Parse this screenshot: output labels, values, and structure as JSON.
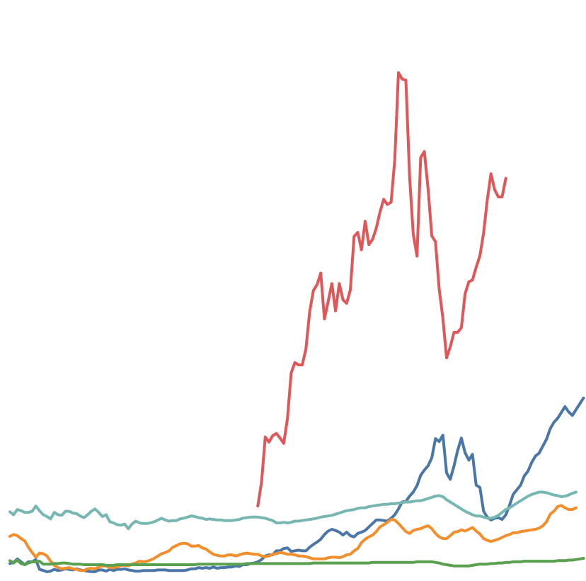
{
  "chart_data": {
    "type": "line",
    "title": "",
    "xlabel": "",
    "ylabel": "",
    "grid": false,
    "legend": "none",
    "x_start": 0,
    "x_step": 1,
    "xlim": [
      0,
      153
    ],
    "ylim": [
      0,
      100
    ],
    "series": [
      {
        "name": "red",
        "color": "#e05759",
        "start_index": 67,
        "values": [
          12.9,
          17.1,
          24.8,
          23.9,
          25.0,
          25.4,
          24.6,
          23.7,
          28.0,
          35.8,
          37.6,
          37.2,
          37.2,
          40.0,
          46.3,
          50.0,
          51.0,
          53.0,
          45.1,
          48.1,
          51.2,
          46.5,
          51.2,
          48.4,
          47.8,
          50.1,
          59.3,
          60.0,
          57.0,
          61.9,
          57.9,
          58.8,
          60.7,
          63.5,
          65.7,
          64.8,
          65.2,
          72.5,
          87.5,
          86.4,
          86.2,
          69.7,
          59.7,
          55.9,
          72.9,
          73.9,
          67.6,
          59.4,
          58.4,
          50.3,
          45.2,
          38.4,
          40.3,
          42.8,
          42.8,
          43.6,
          49.4,
          51.5,
          51.8,
          54.0,
          56.0,
          59.9,
          65.6,
          70.1,
          67.3,
          66.1,
          66.1,
          69.3
        ]
      },
      {
        "name": "blue",
        "color": "#4a76a8",
        "start_index": 0,
        "values": [
          3.0,
          3.2,
          3.8,
          3.3,
          2.8,
          3.3,
          3.3,
          3.7,
          2.0,
          1.8,
          1.6,
          1.7,
          2.0,
          1.8,
          1.9,
          2.1,
          2.0,
          1.9,
          2.1,
          1.9,
          1.8,
          1.7,
          1.6,
          1.6,
          1.9,
          1.9,
          1.7,
          2.0,
          1.8,
          2.0,
          2.0,
          2.1,
          1.9,
          1.8,
          1.7,
          1.7,
          1.8,
          1.8,
          1.8,
          1.8,
          1.9,
          1.9,
          1.9,
          1.8,
          1.8,
          1.8,
          1.8,
          1.8,
          1.9,
          2.1,
          2.1,
          2.3,
          2.2,
          2.3,
          2.2,
          2.4,
          2.2,
          2.3,
          2.3,
          2.4,
          2.4,
          2.6,
          2.5,
          2.8,
          2.8,
          3.0,
          3.1,
          3.3,
          3.7,
          4.3,
          4.5,
          4.5,
          5.2,
          5.2,
          5.6,
          5.7,
          5.1,
          5.2,
          5.3,
          5.2,
          5.2,
          5.8,
          6.3,
          6.7,
          7.2,
          8.0,
          8.6,
          8.9,
          8.7,
          8.4,
          7.9,
          8.4,
          7.8,
          7.6,
          8.2,
          8.4,
          8.7,
          9.3,
          9.9,
          10.5,
          10.5,
          10.4,
          10.3,
          10.8,
          11.4,
          12.4,
          13.6,
          13.7,
          14.6,
          15.3,
          16.4,
          18.2,
          19.1,
          19.8,
          21.2,
          24.5,
          24.0,
          25.1,
          18.6,
          17.5,
          19.8,
          22.5,
          24.6,
          22.1,
          20.8,
          21.8,
          16.5,
          16.1,
          12.0,
          11.0,
          10.5,
          10.8,
          10.9,
          10.6,
          11.4,
          13.0,
          14.9,
          15.7,
          16.5,
          18.1,
          18.9,
          20.4,
          21.5,
          22.0,
          23.2,
          24.4,
          26.2,
          27.3,
          28.0,
          29.0,
          30.0,
          29.1,
          28.5,
          29.5,
          30.5,
          31.5
        ]
      },
      {
        "name": "orange",
        "color": "#f28e2b",
        "start_index": 0,
        "values": [
          7.7,
          8.0,
          7.8,
          7.3,
          6.9,
          5.8,
          4.9,
          4.1,
          4.8,
          4.7,
          4.3,
          3.4,
          2.7,
          2.3,
          2.1,
          2.2,
          2.3,
          2.1,
          2.0,
          1.8,
          1.8,
          2.1,
          2.2,
          2.1,
          2.4,
          2.6,
          2.6,
          2.3,
          2.3,
          2.4,
          2.7,
          2.7,
          2.6,
          2.9,
          3.1,
          3.4,
          3.3,
          3.4,
          3.6,
          3.9,
          4.3,
          4.7,
          4.9,
          5.2,
          5.8,
          6.1,
          6.4,
          6.5,
          6.4,
          6.0,
          6.0,
          6.1,
          5.7,
          5.5,
          5.0,
          4.6,
          4.4,
          4.3,
          4.3,
          4.5,
          4.5,
          4.3,
          4.5,
          4.7,
          4.8,
          4.7,
          4.6,
          4.6,
          4.3,
          4.2,
          4.3,
          4.6,
          4.7,
          4.9,
          4.8,
          4.6,
          4.6,
          4.5,
          4.3,
          4.3,
          4.2,
          4.0,
          3.8,
          3.8,
          3.8,
          3.8,
          4.0,
          4.1,
          4.1,
          4.0,
          4.2,
          4.5,
          4.6,
          5.2,
          5.6,
          6.6,
          7.2,
          7.6,
          7.9,
          8.5,
          9.3,
          9.7,
          10.1,
          10.6,
          10.5,
          9.9,
          9.2,
          8.5,
          8.2,
          8.7,
          8.9,
          9.0,
          9.3,
          9.5,
          9.0,
          8.2,
          7.6,
          7.3,
          7.3,
          7.8,
          8.4,
          8.5,
          8.8,
          8.6,
          8.9,
          9.2,
          8.6,
          8.1,
          7.3,
          7.0,
          6.8,
          7.0,
          7.2,
          7.5,
          7.8,
          8.0,
          8.3,
          8.3,
          8.5,
          8.6,
          8.7,
          8.8,
          8.9,
          9.1,
          9.5,
          10.2,
          11.5,
          12.0,
          12.8,
          13.0,
          12.6,
          12.3,
          12.3,
          12.6
        ]
      },
      {
        "name": "teal",
        "color": "#76b7b2",
        "start_index": 0,
        "values": [
          11.9,
          11.4,
          12.3,
          12.1,
          11.8,
          11.8,
          12.0,
          12.9,
          12.1,
          11.4,
          11.1,
          10.7,
          11.8,
          11.4,
          11.3,
          12.0,
          12.0,
          11.7,
          11.6,
          11.2,
          10.9,
          11.4,
          12.0,
          12.4,
          11.8,
          11.1,
          11.4,
          10.2,
          10.0,
          9.7,
          9.6,
          9.8,
          9.0,
          9.8,
          10.3,
          10.0,
          9.9,
          9.9,
          10.0,
          10.2,
          10.5,
          10.8,
          10.5,
          10.3,
          10.4,
          10.4,
          10.7,
          10.8,
          11.0,
          11.2,
          11.1,
          10.9,
          10.8,
          10.6,
          10.7,
          10.6,
          10.5,
          10.5,
          10.4,
          10.4,
          10.4,
          10.5,
          10.6,
          10.8,
          10.9,
          11.0,
          11.0,
          11.0,
          10.9,
          10.8,
          10.6,
          10.4,
          10.0,
          10.0,
          10.1,
          10.0,
          10.1,
          10.3,
          10.3,
          10.4,
          10.5,
          10.6,
          10.7,
          10.8,
          11.0,
          11.1,
          11.2,
          11.3,
          11.5,
          11.7,
          11.9,
          12.1,
          12.2,
          12.3,
          12.5,
          12.6,
          12.6,
          12.8,
          12.9,
          13.0,
          13.1,
          13.2,
          13.2,
          13.3,
          13.3,
          13.4,
          13.5,
          13.6,
          13.6,
          13.7,
          13.8,
          13.8,
          14.0,
          14.2,
          14.4,
          14.6,
          14.7,
          14.5,
          14.0,
          13.6,
          13.2,
          12.8,
          12.4,
          12.0,
          11.7,
          11.4,
          11.2,
          11.2,
          11.0,
          10.8,
          10.8,
          11.0,
          11.3,
          11.8,
          12.3,
          12.6,
          13.0,
          13.4,
          13.8,
          14.2,
          14.6,
          14.9,
          15.1,
          15.3,
          15.3,
          15.2,
          15.0,
          14.8,
          14.7,
          14.5,
          14.6,
          14.8,
          15.1,
          15.3
        ]
      },
      {
        "name": "green",
        "color": "#59a14f",
        "start_index": 0,
        "values": [
          3.5,
          3.1,
          3.6,
          3.0,
          2.8,
          3.1,
          3.3,
          3.3,
          3.4,
          2.9,
          2.9,
          2.9,
          3.0,
          3.0,
          3.1,
          3.1,
          3.0,
          2.9,
          2.9,
          2.9,
          2.8,
          2.8,
          2.8,
          2.8,
          2.8,
          2.8,
          2.7,
          2.7,
          2.7,
          2.8,
          2.8,
          2.8,
          2.8,
          2.8,
          2.8,
          2.8,
          2.8,
          2.8,
          2.8,
          2.8,
          2.8,
          2.8,
          2.8,
          2.8,
          2.8,
          2.8,
          2.8,
          2.8,
          2.8,
          2.8,
          2.8,
          2.9,
          2.9,
          2.9,
          2.9,
          2.9,
          2.9,
          2.9,
          2.9,
          2.9,
          2.9,
          2.9,
          2.9,
          2.9,
          3.0,
          3.0,
          3.0,
          3.0,
          3.0,
          3.0,
          3.0,
          3.0,
          3.0,
          3.0,
          3.0,
          3.0,
          3.0,
          3.0,
          3.0,
          3.0,
          3.0,
          3.0,
          3.1,
          3.1,
          3.1,
          3.1,
          3.1,
          3.1,
          3.1,
          3.1,
          3.1,
          3.1,
          3.1,
          3.1,
          3.1,
          3.1,
          3.1,
          3.1,
          3.2,
          3.2,
          3.2,
          3.2,
          3.2,
          3.2,
          3.2,
          3.2,
          3.2,
          3.2,
          3.2,
          3.2,
          3.3,
          3.3,
          3.3,
          3.3,
          3.3,
          3.2,
          3.1,
          2.9,
          2.8,
          2.7,
          2.6,
          2.6,
          2.6,
          2.6,
          2.6,
          2.7,
          2.8,
          2.9,
          2.9,
          2.9,
          3.0,
          3.0,
          3.1,
          3.1,
          3.2,
          3.2,
          3.3,
          3.3,
          3.3,
          3.4,
          3.4,
          3.4,
          3.4,
          3.4,
          3.4,
          3.4,
          3.4,
          3.4,
          3.5,
          3.5,
          3.5,
          3.6,
          3.6,
          3.7,
          3.8,
          3.9
        ]
      }
    ]
  }
}
